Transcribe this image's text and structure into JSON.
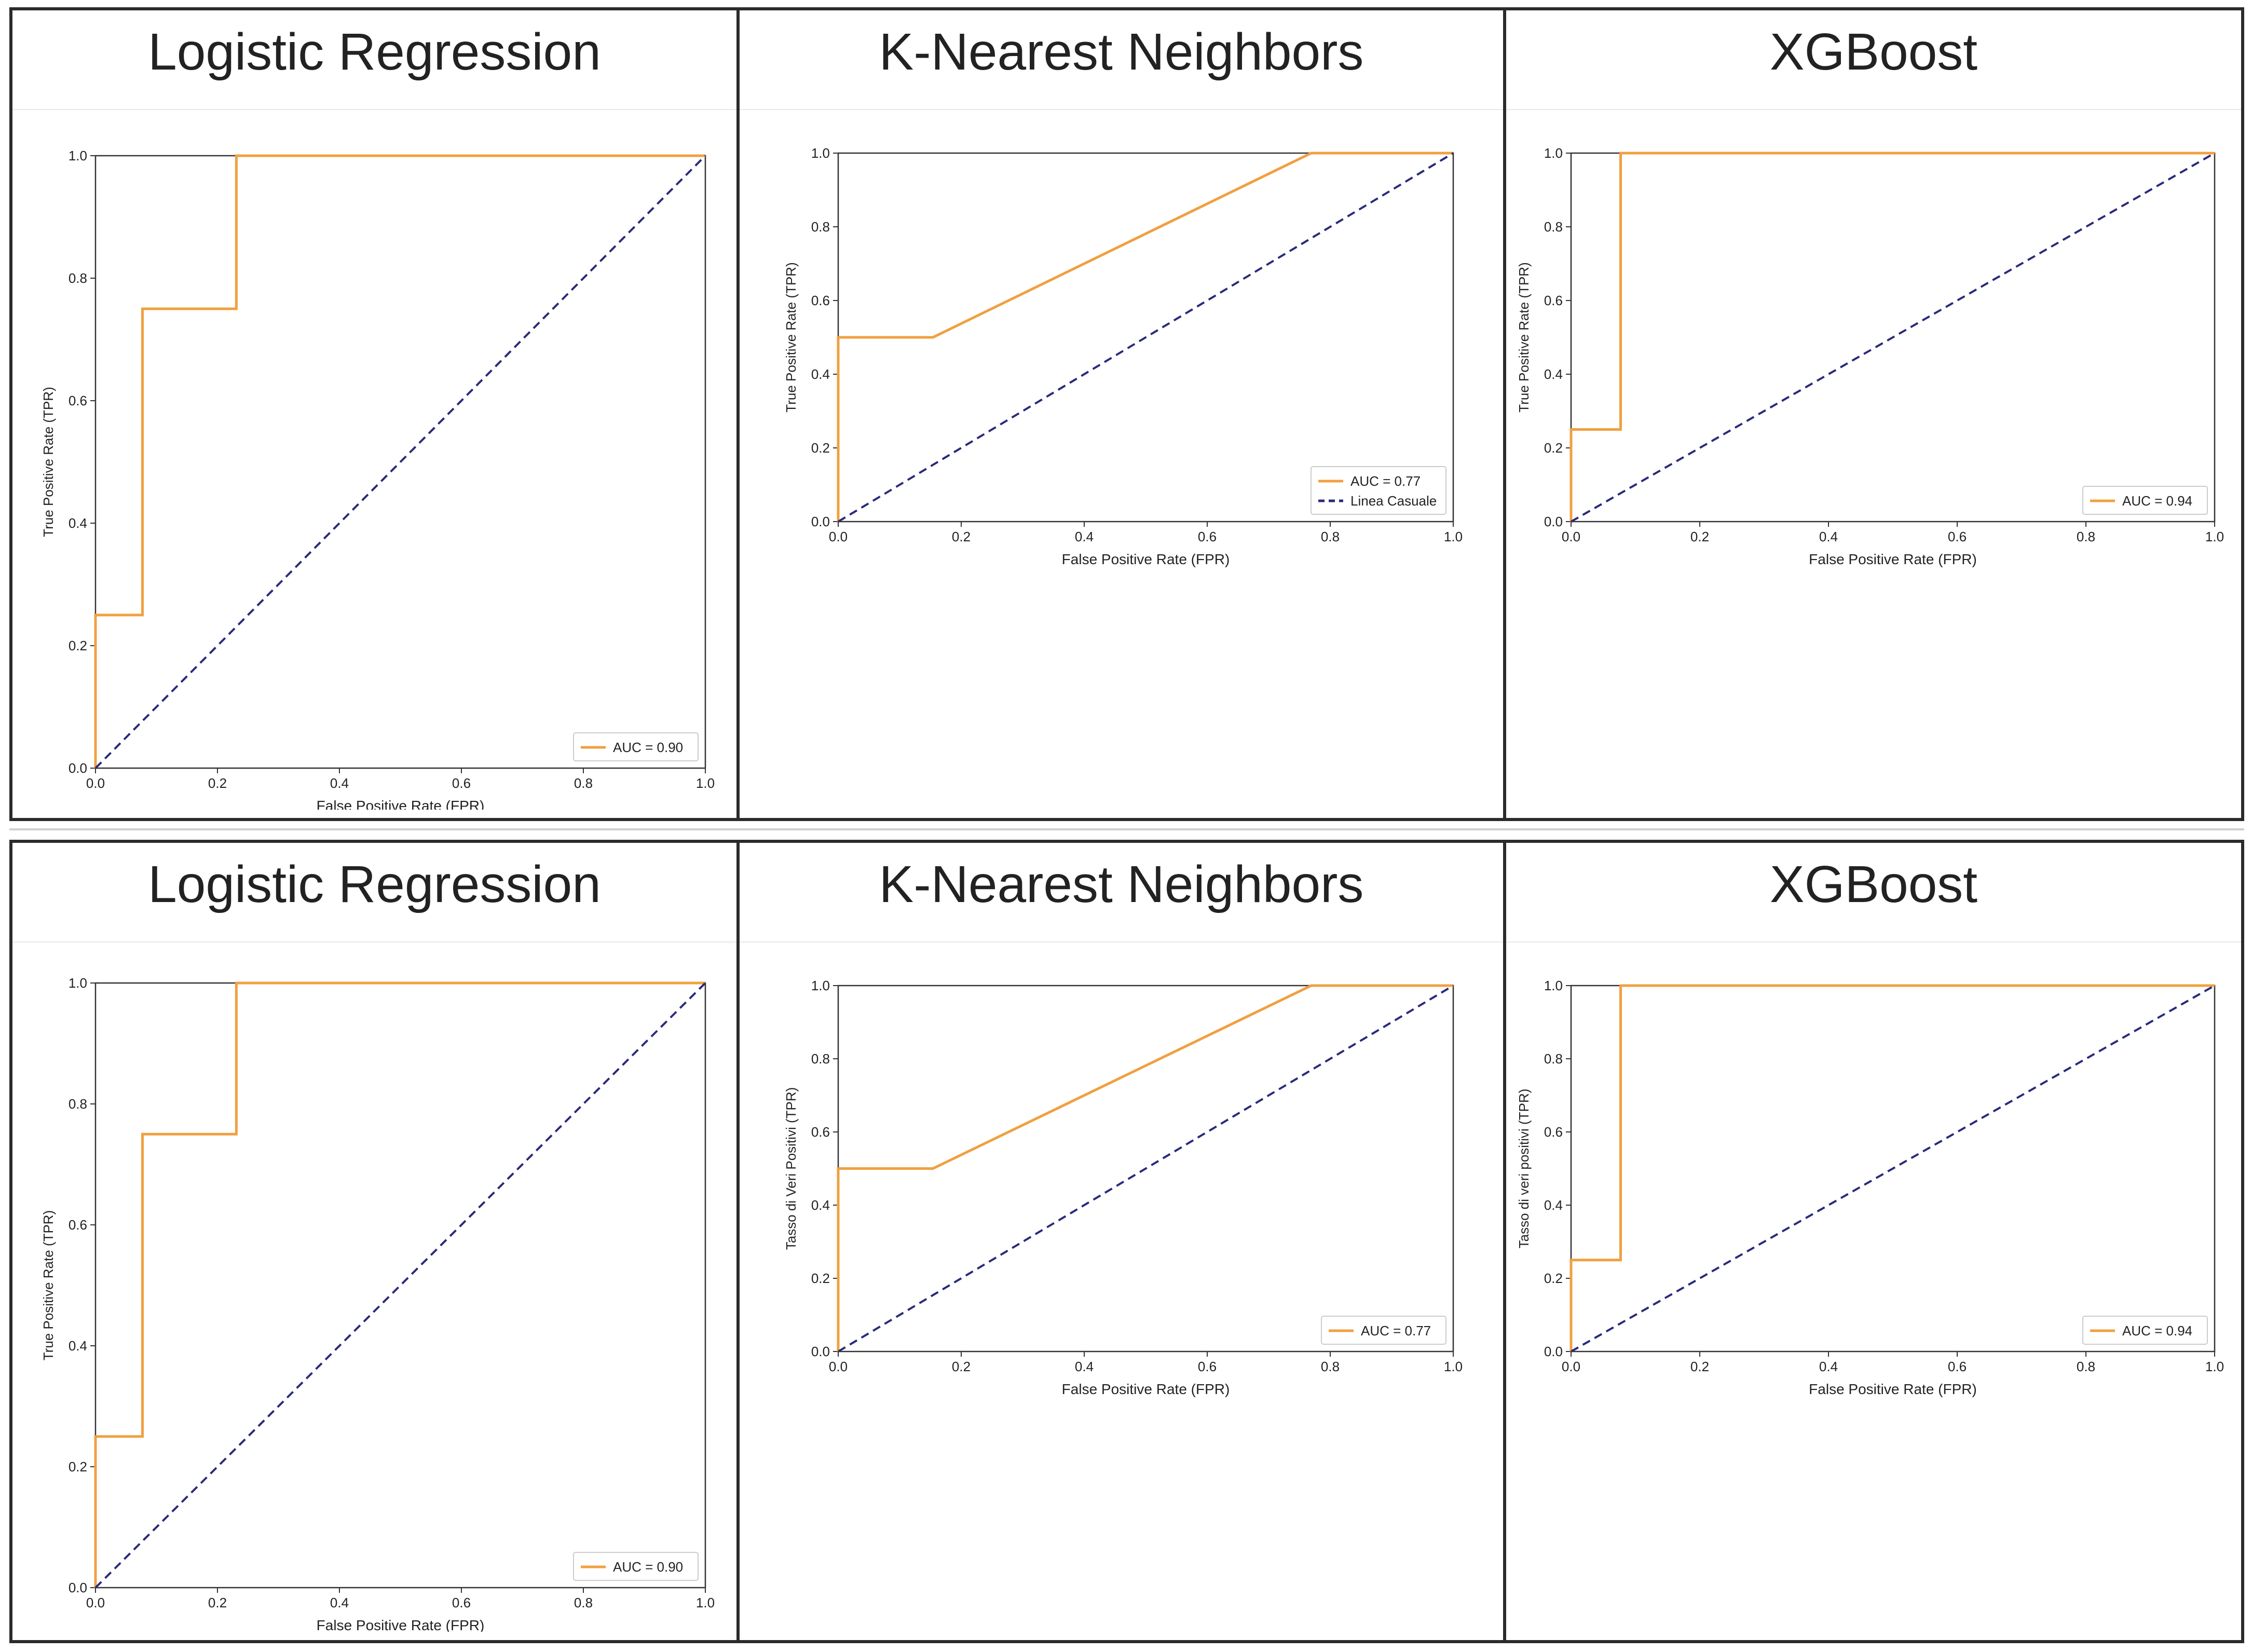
{
  "colors": {
    "roc": "#f0a040",
    "chance": "#2a2a7a"
  },
  "chart_data": [
    {
      "type": "line",
      "title": "Logistic Regression",
      "xlabel": "False Positive Rate (FPR)",
      "ylabel": "True Positive Rate (TPR)",
      "xlim": [
        0,
        1
      ],
      "ylim": [
        0,
        1
      ],
      "xticks": [
        "0.0",
        "0.2",
        "0.4",
        "0.6",
        "0.8",
        "1.0"
      ],
      "yticks": [
        "0.0",
        "0.2",
        "0.4",
        "0.6",
        "0.8",
        "1.0"
      ],
      "series": [
        {
          "name": "AUC = 0.90",
          "style": "solid",
          "x": [
            0,
            0,
            0.077,
            0.077,
            0.231,
            0.231,
            1
          ],
          "y": [
            0,
            0.25,
            0.25,
            0.75,
            0.75,
            1,
            1
          ]
        },
        {
          "name": "",
          "style": "dashed",
          "x": [
            0,
            1
          ],
          "y": [
            0,
            1
          ]
        }
      ],
      "legend": [
        "AUC = 0.90"
      ],
      "legend_position": "lower-right"
    },
    {
      "type": "line",
      "title": "K-Nearest Neighbors",
      "xlabel": "False Positive Rate (FPR)",
      "ylabel": "True Positive Rate (TPR)",
      "xlim": [
        0,
        1
      ],
      "ylim": [
        0,
        1
      ],
      "xticks": [
        "0.0",
        "0.2",
        "0.4",
        "0.6",
        "0.8",
        "1.0"
      ],
      "yticks": [
        "0.0",
        "0.2",
        "0.4",
        "0.6",
        "0.8",
        "1.0"
      ],
      "series": [
        {
          "name": "AUC = 0.77",
          "style": "solid",
          "x": [
            0,
            0,
            0.154,
            0.769,
            1
          ],
          "y": [
            0,
            0.5,
            0.5,
            1,
            1
          ]
        },
        {
          "name": "Linea Casuale",
          "style": "dashed",
          "x": [
            0,
            1
          ],
          "y": [
            0,
            1
          ]
        }
      ],
      "legend": [
        "AUC = 0.77",
        "Linea Casuale"
      ],
      "legend_position": "lower-right"
    },
    {
      "type": "line",
      "title": "XGBoost",
      "xlabel": "False Positive Rate (FPR)",
      "ylabel": "True Positive Rate (TPR)",
      "xlim": [
        0,
        1
      ],
      "ylim": [
        0,
        1
      ],
      "xticks": [
        "0.0",
        "0.2",
        "0.4",
        "0.6",
        "0.8",
        "1.0"
      ],
      "yticks": [
        "0.0",
        "0.2",
        "0.4",
        "0.6",
        "0.8",
        "1.0"
      ],
      "series": [
        {
          "name": "AUC = 0.94",
          "style": "solid",
          "x": [
            0,
            0,
            0.077,
            0.077,
            1
          ],
          "y": [
            0,
            0.25,
            0.25,
            1,
            1
          ]
        },
        {
          "name": "",
          "style": "dashed",
          "x": [
            0,
            1
          ],
          "y": [
            0,
            1
          ]
        }
      ],
      "legend": [
        "AUC = 0.94"
      ],
      "legend_position": "lower-right"
    },
    {
      "type": "line",
      "title": "Logistic Regression",
      "xlabel": "False Positive Rate (FPR)",
      "ylabel": "True Positive Rate (TPR)",
      "xlim": [
        0,
        1
      ],
      "ylim": [
        0,
        1
      ],
      "xticks": [
        "0.0",
        "0.2",
        "0.4",
        "0.6",
        "0.8",
        "1.0"
      ],
      "yticks": [
        "0.0",
        "0.2",
        "0.4",
        "0.6",
        "0.8",
        "1.0"
      ],
      "series": [
        {
          "name": "AUC = 0.90",
          "style": "solid",
          "x": [
            0,
            0,
            0.077,
            0.077,
            0.231,
            0.231,
            1
          ],
          "y": [
            0,
            0.25,
            0.25,
            0.75,
            0.75,
            1,
            1
          ]
        },
        {
          "name": "",
          "style": "dashed",
          "x": [
            0,
            1
          ],
          "y": [
            0,
            1
          ]
        }
      ],
      "legend": [
        "AUC = 0.90"
      ],
      "legend_position": "lower-right"
    },
    {
      "type": "line",
      "title": "K-Nearest Neighbors",
      "xlabel": "False Positive Rate (FPR)",
      "ylabel": "Tasso di Veri Positivi (TPR)",
      "xlim": [
        0,
        1
      ],
      "ylim": [
        0,
        1
      ],
      "xticks": [
        "0.0",
        "0.2",
        "0.4",
        "0.6",
        "0.8",
        "1.0"
      ],
      "yticks": [
        "0.0",
        "0.2",
        "0.4",
        "0.6",
        "0.8",
        "1.0"
      ],
      "series": [
        {
          "name": "AUC = 0.77",
          "style": "solid",
          "x": [
            0,
            0,
            0.154,
            0.769,
            1
          ],
          "y": [
            0,
            0.5,
            0.5,
            1,
            1
          ]
        },
        {
          "name": "",
          "style": "dashed",
          "x": [
            0,
            1
          ],
          "y": [
            0,
            1
          ]
        }
      ],
      "legend": [
        "AUC = 0.77"
      ],
      "legend_position": "lower-right"
    },
    {
      "type": "line",
      "title": "XGBoost",
      "xlabel": "False Positive Rate (FPR)",
      "ylabel": "Tasso di veri positivi (TPR)",
      "xlim": [
        0,
        1
      ],
      "ylim": [
        0,
        1
      ],
      "xticks": [
        "0.0",
        "0.2",
        "0.4",
        "0.6",
        "0.8",
        "1.0"
      ],
      "yticks": [
        "0.0",
        "0.2",
        "0.4",
        "0.6",
        "0.8",
        "1.0"
      ],
      "series": [
        {
          "name": "AUC = 0.94",
          "style": "solid",
          "x": [
            0,
            0,
            0.077,
            0.077,
            1
          ],
          "y": [
            0,
            0.25,
            0.25,
            1,
            1
          ]
        },
        {
          "name": "",
          "style": "dashed",
          "x": [
            0,
            1
          ],
          "y": [
            0,
            1
          ]
        }
      ],
      "legend": [
        "AUC = 0.94"
      ],
      "legend_position": "lower-right"
    }
  ]
}
